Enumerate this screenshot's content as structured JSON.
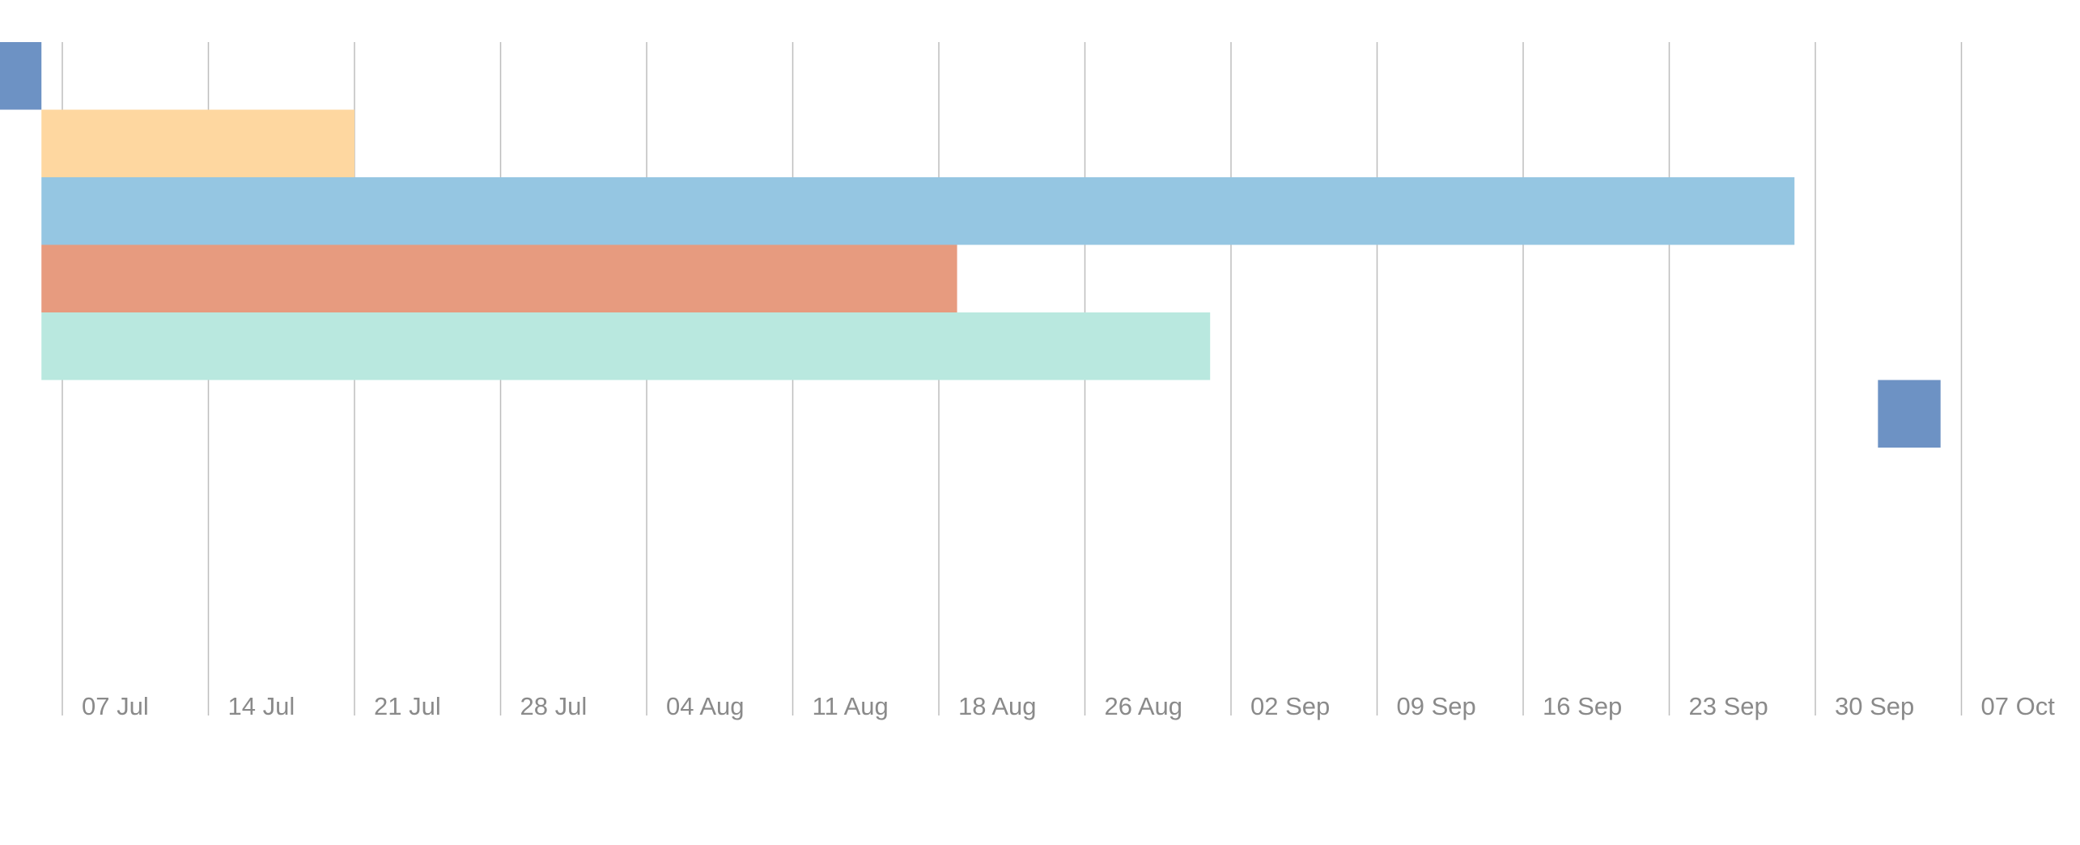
{
  "chart_data": {
    "type": "gantt",
    "title": "",
    "xlabel": "",
    "ylabel": "",
    "x_axis": {
      "tick_labels": [
        "07 Jul",
        "14 Jul",
        "21 Jul",
        "28 Jul",
        "04 Aug",
        "11 Aug",
        "18 Aug",
        "26 Aug",
        "02 Sep",
        "09 Sep",
        "16 Sep",
        "23 Sep",
        "30 Sep",
        "07 Oct"
      ],
      "grid": "vertical"
    },
    "tasks": [
      {
        "start": "03 Jul",
        "end": "06 Jul",
        "kind": "milestone",
        "color": "#6d92c4"
      },
      {
        "start": "06 Jul",
        "end": "21 Jul",
        "color": "#fed7a0"
      },
      {
        "start": "06 Jul",
        "end": "29 Sep",
        "color": "#95c6e2"
      },
      {
        "start": "06 Jul",
        "end": "19 Aug",
        "color": "#e79b7f"
      },
      {
        "start": "06 Jul",
        "end": "01 Sep",
        "color": "#b9e8df"
      },
      {
        "start": "03 Oct",
        "end": "06 Oct",
        "kind": "milestone",
        "color": "#6d92c4"
      }
    ],
    "colors": {
      "gridline": "#bdbdbd",
      "tick_text": "#8a8a8a"
    }
  }
}
